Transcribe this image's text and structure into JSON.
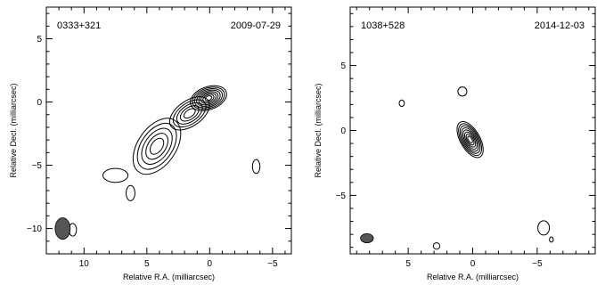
{
  "chart_data": [
    {
      "type": "contour",
      "source_label": "0333+321",
      "date_label": "2009-07-29",
      "xlabel": "Relative R.A. (milliarcsec)",
      "ylabel": "Relative Decl. (milliarcsec)",
      "xlim": [
        13,
        -6.5
      ],
      "ylim": [
        -12,
        7.5
      ],
      "xticks": [
        10,
        5,
        0,
        -5
      ],
      "yticks": [
        5,
        0,
        -5,
        -10
      ],
      "beam": {
        "x": 11.7,
        "y": -10.0,
        "rx": 0.6,
        "ry": 0.85
      },
      "components": [
        {
          "x": 0.1,
          "y": 0.3,
          "a": 1.5,
          "b": 0.9,
          "angle": -20,
          "levels": 8
        },
        {
          "x": 1.6,
          "y": -0.9,
          "a": 1.8,
          "b": 1.0,
          "angle": -35,
          "levels": 5
        },
        {
          "x": 4.2,
          "y": -3.5,
          "a": 2.5,
          "b": 1.5,
          "angle": -55,
          "levels": 5
        },
        {
          "x": 7.5,
          "y": -5.8,
          "a": 1.0,
          "b": 0.55,
          "angle": 0,
          "levels": 1
        }
      ],
      "isolated": [
        {
          "x": 6.3,
          "y": -7.2,
          "a": 0.35,
          "b": 0.6
        },
        {
          "x": 10.9,
          "y": -10.1,
          "a": 0.3,
          "b": 0.5
        },
        {
          "x": -3.7,
          "y": -5.1,
          "a": 0.3,
          "b": 0.55
        }
      ]
    },
    {
      "type": "contour",
      "source_label": "1038+528",
      "date_label": "2014-12-03",
      "xlabel": "Relative R.A. (milliarcsec)",
      "ylabel": "Relative Decl. (milliarcsec)",
      "xlim": [
        9.5,
        -9.5
      ],
      "ylim": [
        -9.5,
        9.5
      ],
      "xticks": [
        5,
        0,
        -5
      ],
      "yticks": [
        5,
        0,
        -5
      ],
      "beam": {
        "x": 8.2,
        "y": -8.3,
        "rx": 0.5,
        "ry": 0.35
      },
      "components": [
        {
          "x": 0.2,
          "y": -0.7,
          "a": 1.55,
          "b": 0.75,
          "angle": 60,
          "levels": 8
        }
      ],
      "isolated": [
        {
          "x": 5.5,
          "y": 2.1,
          "a": 0.2,
          "b": 0.25
        },
        {
          "x": 0.8,
          "y": 3.0,
          "a": 0.35,
          "b": 0.35
        },
        {
          "x": -5.5,
          "y": -7.5,
          "a": 0.45,
          "b": 0.55
        },
        {
          "x": -6.1,
          "y": -8.4,
          "a": 0.15,
          "b": 0.2
        },
        {
          "x": 2.8,
          "y": -8.9,
          "a": 0.25,
          "b": 0.25
        }
      ]
    }
  ]
}
